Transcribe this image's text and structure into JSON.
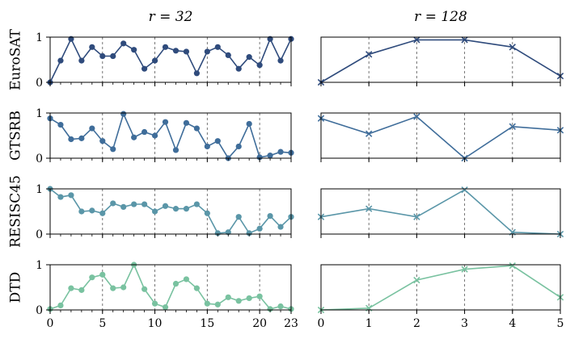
{
  "chart_data": [
    {
      "type": "line",
      "title": "r = 32",
      "x_ticks": [
        0,
        5,
        10,
        15,
        20,
        23
      ],
      "xlim": [
        0,
        23
      ],
      "ylim": [
        0,
        1
      ],
      "y_ticks": [
        0,
        1
      ],
      "vlines_dashed_at": [
        5,
        10,
        15,
        20
      ],
      "marker": "circle",
      "series": [
        {
          "name": "EuroSAT",
          "color": "#2f4b7c",
          "x": [
            0,
            1,
            2,
            3,
            4,
            5,
            6,
            7,
            8,
            9,
            10,
            11,
            12,
            13,
            14,
            15,
            16,
            17,
            18,
            19,
            20,
            21,
            22,
            23
          ],
          "values": [
            0.0,
            0.48,
            0.96,
            0.48,
            0.78,
            0.58,
            0.58,
            0.86,
            0.72,
            0.3,
            0.48,
            0.78,
            0.7,
            0.68,
            0.2,
            0.68,
            0.78,
            0.6,
            0.3,
            0.56,
            0.38,
            0.96,
            0.48,
            0.96
          ]
        },
        {
          "name": "GTSRB",
          "color": "#3f6d9a",
          "x": [
            0,
            1,
            2,
            3,
            4,
            5,
            6,
            7,
            8,
            9,
            10,
            11,
            12,
            13,
            14,
            15,
            16,
            17,
            18,
            19,
            20,
            21,
            22,
            23
          ],
          "values": [
            0.88,
            0.74,
            0.42,
            0.44,
            0.66,
            0.38,
            0.2,
            0.98,
            0.46,
            0.58,
            0.5,
            0.8,
            0.18,
            0.78,
            0.66,
            0.26,
            0.38,
            0.0,
            0.26,
            0.76,
            0.02,
            0.06,
            0.14,
            0.12
          ]
        },
        {
          "name": "RESISC45",
          "color": "#5a96a8",
          "x": [
            0,
            1,
            2,
            3,
            4,
            5,
            6,
            7,
            8,
            9,
            10,
            11,
            12,
            13,
            14,
            15,
            16,
            17,
            18,
            19,
            20,
            21,
            22,
            23
          ],
          "values": [
            1.0,
            0.82,
            0.86,
            0.5,
            0.52,
            0.46,
            0.68,
            0.6,
            0.66,
            0.66,
            0.5,
            0.62,
            0.56,
            0.56,
            0.66,
            0.46,
            0.02,
            0.04,
            0.38,
            0.02,
            0.12,
            0.4,
            0.16,
            0.38
          ]
        },
        {
          "name": "DTD",
          "color": "#79c2a0",
          "x": [
            0,
            1,
            2,
            3,
            4,
            5,
            6,
            7,
            8,
            9,
            10,
            11,
            12,
            13,
            14,
            15,
            16,
            17,
            18,
            19,
            20,
            21,
            22,
            23
          ],
          "values": [
            0.02,
            0.1,
            0.48,
            0.44,
            0.72,
            0.78,
            0.48,
            0.5,
            1.0,
            0.46,
            0.14,
            0.06,
            0.58,
            0.68,
            0.48,
            0.14,
            0.12,
            0.28,
            0.2,
            0.26,
            0.3,
            0.02,
            0.08,
            0.02
          ]
        }
      ]
    },
    {
      "type": "line",
      "title": "r = 128",
      "x_ticks": [
        0,
        1,
        2,
        3,
        4,
        5
      ],
      "xlim": [
        0,
        5
      ],
      "ylim": [
        0,
        1
      ],
      "vlines_dashed_at": [
        1,
        2,
        3,
        4
      ],
      "marker": "x",
      "series": [
        {
          "name": "EuroSAT",
          "color": "#2f4b7c",
          "x": [
            0,
            1,
            2,
            3,
            4,
            5
          ],
          "values": [
            0.0,
            0.62,
            0.94,
            0.94,
            0.78,
            0.14
          ]
        },
        {
          "name": "GTSRB",
          "color": "#3f6d9a",
          "x": [
            0,
            1,
            2,
            3,
            4,
            5
          ],
          "values": [
            0.88,
            0.54,
            0.92,
            0.0,
            0.7,
            0.62
          ]
        },
        {
          "name": "RESISC45",
          "color": "#5a96a8",
          "x": [
            0,
            1,
            2,
            3,
            4,
            5
          ],
          "values": [
            0.38,
            0.56,
            0.38,
            0.98,
            0.04,
            0.0
          ]
        },
        {
          "name": "DTD",
          "color": "#79c2a0",
          "x": [
            0,
            1,
            2,
            3,
            4,
            5
          ],
          "values": [
            0.0,
            0.04,
            0.66,
            0.9,
            0.98,
            0.28
          ]
        }
      ]
    }
  ]
}
